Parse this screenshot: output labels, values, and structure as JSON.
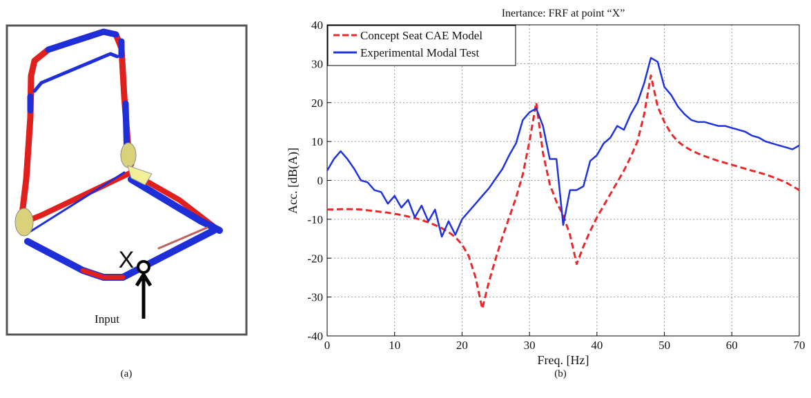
{
  "figure": {
    "panel_a_label": "(a)",
    "panel_b_label": "(b)",
    "point_label": "X",
    "input_label": "Input"
  },
  "chart_data": {
    "type": "line",
    "title": "Inertance: FRF at point “X”",
    "x_label": "Freq. [Hz]",
    "y_label": "Acc. [dB(A)]",
    "x": [
      0,
      1,
      2,
      3,
      4,
      5,
      6,
      7,
      8,
      9,
      10,
      11,
      12,
      13,
      14,
      15,
      16,
      17,
      18,
      19,
      20,
      21,
      22,
      23,
      24,
      25,
      26,
      27,
      28,
      29,
      30,
      31,
      32,
      33,
      34,
      35,
      36,
      37,
      38,
      39,
      40,
      41,
      42,
      43,
      44,
      45,
      46,
      47,
      48,
      49,
      50,
      51,
      52,
      53,
      54,
      55,
      56,
      57,
      58,
      59,
      60,
      61,
      62,
      63,
      64,
      65,
      66,
      67,
      68,
      69,
      70
    ],
    "series": [
      {
        "name": "Concept Seat CAE Model",
        "color": "#e8282b",
        "dashed": true,
        "values": [
          -7.5,
          -7.5,
          -7.4,
          -7.4,
          -7.4,
          -7.5,
          -7.7,
          -7.9,
          -8.1,
          -8.3,
          -8.6,
          -8.9,
          -9.3,
          -9.7,
          -10.2,
          -10.8,
          -11.5,
          -12.3,
          -13.3,
          -14.6,
          -16.5,
          -19.5,
          -25,
          -33,
          -26,
          -20,
          -14.5,
          -9.5,
          -4.5,
          1.5,
          10,
          20,
          7,
          -1,
          -5.5,
          -9,
          -14,
          -21.5,
          -17,
          -13,
          -9.5,
          -6.5,
          -3.5,
          -0.5,
          2.5,
          6,
          10,
          17,
          27,
          19,
          15,
          12,
          10,
          8.7,
          7.7,
          6.9,
          6.2,
          5.6,
          5,
          4.5,
          4,
          3.5,
          3,
          2.5,
          2,
          1.5,
          0.9,
          0.2,
          -0.5,
          -1.5,
          -2.5
        ]
      },
      {
        "name": "Experimental Modal Test",
        "color": "#1f32e0",
        "dashed": false,
        "values": [
          2.5,
          5.5,
          7.5,
          5.5,
          3,
          0,
          -0.5,
          -2.5,
          -3,
          -6,
          -4,
          -7,
          -5,
          -9.5,
          -6.5,
          -10.5,
          -7.5,
          -14.5,
          -10.5,
          -14,
          -10,
          -8,
          -6,
          -4,
          -2,
          0.5,
          3,
          6.5,
          9.5,
          15.5,
          17.5,
          18.5,
          14,
          5.5,
          5.5,
          -11.5,
          -2.5,
          -2.5,
          -1.5,
          5,
          6.5,
          9.5,
          11,
          14,
          13,
          17,
          20,
          25,
          31.5,
          30.5,
          24,
          22,
          19,
          17,
          15.5,
          15,
          15,
          14.5,
          14,
          14,
          13.5,
          13,
          12.5,
          11.5,
          11,
          10,
          9.5,
          9,
          8.5,
          8,
          9
        ]
      }
    ],
    "xlim": [
      0,
      70
    ],
    "ylim": [
      -40,
      40
    ],
    "xticks": [
      0,
      10,
      20,
      30,
      40,
      50,
      60,
      70
    ],
    "yticks": [
      -40,
      -30,
      -20,
      -10,
      0,
      10,
      20,
      30,
      40
    ],
    "grid": true,
    "legend": "upper-left"
  }
}
